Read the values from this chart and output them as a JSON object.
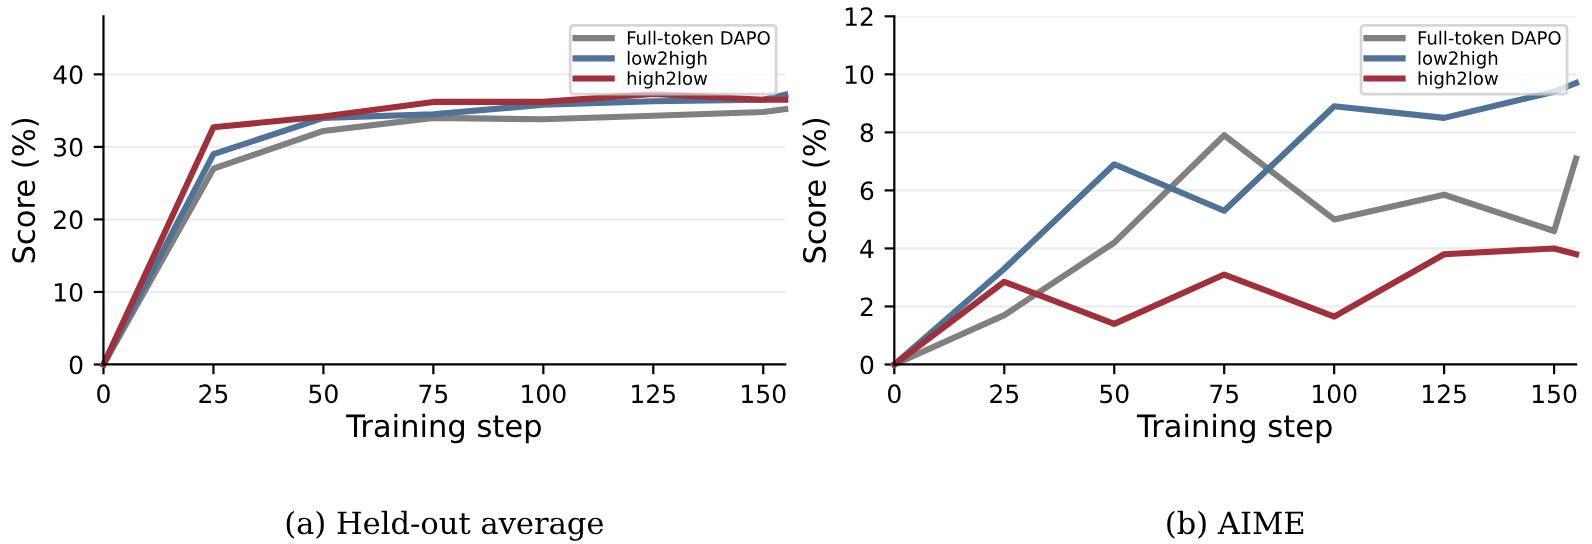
{
  "chart_data": [
    {
      "type": "line",
      "subtitle": "(a) Held-out average",
      "xlabel": "Training step",
      "ylabel": "Score (%)",
      "x": [
        0,
        25,
        50,
        75,
        100,
        125,
        150,
        155
      ],
      "xlim": [
        0,
        155
      ],
      "xticks": [
        0,
        25,
        50,
        75,
        100,
        125,
        150
      ],
      "ylim": [
        0,
        48
      ],
      "yticks": [
        0,
        10,
        20,
        30,
        40
      ],
      "grid": "y",
      "legend": "top right",
      "series": [
        {
          "name": "Full-token DAPO",
          "color": "#808080",
          "values": [
            0,
            27,
            32.2,
            34,
            33.8,
            34.3,
            34.8,
            35.2
          ]
        },
        {
          "name": "low2high",
          "color": "#4f7396",
          "values": [
            0,
            29,
            34,
            34.5,
            35.8,
            36.3,
            36.5,
            37.2
          ]
        },
        {
          "name": "high2low",
          "color": "#a0303a",
          "values": [
            0,
            32.7,
            34.2,
            36.2,
            36.2,
            37.3,
            36.5,
            36.5
          ]
        }
      ]
    },
    {
      "type": "line",
      "subtitle": "(b) AIME",
      "xlabel": "Training step",
      "ylabel": "Score (%)",
      "x": [
        0,
        25,
        50,
        75,
        100,
        125,
        150,
        155
      ],
      "xlim": [
        0,
        155
      ],
      "xticks": [
        0,
        25,
        50,
        75,
        100,
        125,
        150
      ],
      "ylim": [
        0,
        12
      ],
      "yticks": [
        0,
        2,
        4,
        6,
        8,
        10,
        12
      ],
      "grid": "y",
      "legend": "top right",
      "series": [
        {
          "name": "Full-token DAPO",
          "color": "#808080",
          "values": [
            0,
            1.7,
            4.2,
            7.9,
            5.0,
            5.85,
            4.6,
            7.1
          ]
        },
        {
          "name": "low2high",
          "color": "#4f7396",
          "values": [
            0,
            3.3,
            6.9,
            5.3,
            8.9,
            8.5,
            9.4,
            9.7
          ]
        },
        {
          "name": "high2low",
          "color": "#a0303a",
          "values": [
            0,
            2.85,
            1.4,
            3.1,
            1.65,
            3.8,
            4.0,
            3.8
          ]
        }
      ]
    }
  ]
}
